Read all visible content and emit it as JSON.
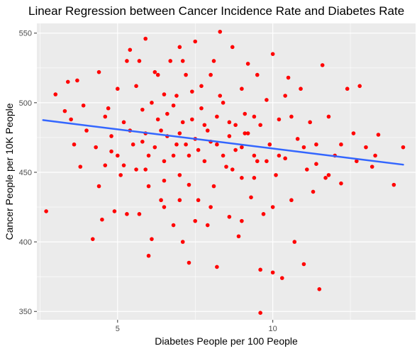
{
  "chart_data": {
    "type": "scatter",
    "title": "Linear Regression between Cancer Incidence Rate and Diabetes Rate",
    "xlabel": "Diabetes People per 100 People",
    "ylabel": "Cancer People per 10K People",
    "xlim": [
      2.4,
      14.6
    ],
    "ylim": [
      344,
      557
    ],
    "x_ticks": [
      5,
      10
    ],
    "y_ticks": [
      350,
      400,
      450,
      500,
      550
    ],
    "grid": true,
    "legend": "none",
    "point_color": "#ff0000",
    "line_color": "#3366ff",
    "panel_color": "#ebebeb",
    "regression": {
      "x": [
        2.6,
        14.2
      ],
      "y": [
        487.5,
        455.5
      ]
    },
    "points": [
      {
        "x": 2.7,
        "y": 422
      },
      {
        "x": 3.0,
        "y": 506
      },
      {
        "x": 3.4,
        "y": 515
      },
      {
        "x": 3.3,
        "y": 494
      },
      {
        "x": 3.5,
        "y": 488
      },
      {
        "x": 3.6,
        "y": 470
      },
      {
        "x": 3.7,
        "y": 516
      },
      {
        "x": 3.8,
        "y": 454
      },
      {
        "x": 3.9,
        "y": 498
      },
      {
        "x": 4.0,
        "y": 480
      },
      {
        "x": 4.2,
        "y": 402
      },
      {
        "x": 4.3,
        "y": 468
      },
      {
        "x": 4.4,
        "y": 522
      },
      {
        "x": 4.4,
        "y": 440
      },
      {
        "x": 4.5,
        "y": 416
      },
      {
        "x": 4.6,
        "y": 455
      },
      {
        "x": 4.7,
        "y": 496
      },
      {
        "x": 4.8,
        "y": 476
      },
      {
        "x": 4.9,
        "y": 422
      },
      {
        "x": 5.0,
        "y": 510
      },
      {
        "x": 5.0,
        "y": 462
      },
      {
        "x": 5.1,
        "y": 448
      },
      {
        "x": 5.2,
        "y": 486
      },
      {
        "x": 5.3,
        "y": 420
      },
      {
        "x": 5.3,
        "y": 530
      },
      {
        "x": 5.4,
        "y": 538
      },
      {
        "x": 5.5,
        "y": 470
      },
      {
        "x": 5.6,
        "y": 512
      },
      {
        "x": 5.6,
        "y": 452
      },
      {
        "x": 5.7,
        "y": 420
      },
      {
        "x": 5.8,
        "y": 495
      },
      {
        "x": 5.9,
        "y": 546
      },
      {
        "x": 5.9,
        "y": 478
      },
      {
        "x": 6.0,
        "y": 390
      },
      {
        "x": 6.0,
        "y": 440
      },
      {
        "x": 6.1,
        "y": 402
      },
      {
        "x": 6.2,
        "y": 522
      },
      {
        "x": 6.2,
        "y": 468
      },
      {
        "x": 6.3,
        "y": 488
      },
      {
        "x": 6.4,
        "y": 430
      },
      {
        "x": 6.5,
        "y": 506
      },
      {
        "x": 6.5,
        "y": 458
      },
      {
        "x": 6.6,
        "y": 476
      },
      {
        "x": 6.7,
        "y": 530
      },
      {
        "x": 6.8,
        "y": 412
      },
      {
        "x": 6.8,
        "y": 498
      },
      {
        "x": 6.9,
        "y": 470
      },
      {
        "x": 7.0,
        "y": 540
      },
      {
        "x": 7.0,
        "y": 448
      },
      {
        "x": 7.1,
        "y": 400
      },
      {
        "x": 7.1,
        "y": 486
      },
      {
        "x": 7.2,
        "y": 520
      },
      {
        "x": 7.3,
        "y": 462
      },
      {
        "x": 7.3,
        "y": 385
      },
      {
        "x": 7.4,
        "y": 508
      },
      {
        "x": 7.5,
        "y": 544
      },
      {
        "x": 7.5,
        "y": 474
      },
      {
        "x": 7.6,
        "y": 430
      },
      {
        "x": 7.7,
        "y": 496
      },
      {
        "x": 7.8,
        "y": 458
      },
      {
        "x": 7.9,
        "y": 412
      },
      {
        "x": 7.9,
        "y": 480
      },
      {
        "x": 8.0,
        "y": 520
      },
      {
        "x": 8.1,
        "y": 440
      },
      {
        "x": 8.2,
        "y": 382
      },
      {
        "x": 8.2,
        "y": 470
      },
      {
        "x": 8.3,
        "y": 551
      },
      {
        "x": 8.4,
        "y": 500
      },
      {
        "x": 8.5,
        "y": 454
      },
      {
        "x": 8.6,
        "y": 418
      },
      {
        "x": 8.6,
        "y": 486
      },
      {
        "x": 8.7,
        "y": 540
      },
      {
        "x": 8.8,
        "y": 466
      },
      {
        "x": 8.9,
        "y": 404
      },
      {
        "x": 9.0,
        "y": 510
      },
      {
        "x": 9.0,
        "y": 446
      },
      {
        "x": 9.1,
        "y": 478
      },
      {
        "x": 9.2,
        "y": 528
      },
      {
        "x": 9.3,
        "y": 432
      },
      {
        "x": 9.4,
        "y": 490
      },
      {
        "x": 9.5,
        "y": 458
      },
      {
        "x": 9.6,
        "y": 349
      },
      {
        "x": 9.6,
        "y": 380
      },
      {
        "x": 9.7,
        "y": 420
      },
      {
        "x": 9.8,
        "y": 502
      },
      {
        "x": 9.9,
        "y": 470
      },
      {
        "x": 10.0,
        "y": 535
      },
      {
        "x": 10.0,
        "y": 378
      },
      {
        "x": 10.1,
        "y": 448
      },
      {
        "x": 10.2,
        "y": 488
      },
      {
        "x": 10.3,
        "y": 374
      },
      {
        "x": 10.4,
        "y": 460
      },
      {
        "x": 10.5,
        "y": 518
      },
      {
        "x": 10.6,
        "y": 430
      },
      {
        "x": 10.7,
        "y": 400
      },
      {
        "x": 10.8,
        "y": 474
      },
      {
        "x": 10.9,
        "y": 510
      },
      {
        "x": 11.0,
        "y": 384
      },
      {
        "x": 11.1,
        "y": 452
      },
      {
        "x": 11.2,
        "y": 486
      },
      {
        "x": 11.3,
        "y": 436
      },
      {
        "x": 11.4,
        "y": 470
      },
      {
        "x": 11.5,
        "y": 366
      },
      {
        "x": 11.6,
        "y": 527
      },
      {
        "x": 11.7,
        "y": 446
      },
      {
        "x": 11.8,
        "y": 490
      },
      {
        "x": 12.0,
        "y": 462
      },
      {
        "x": 12.2,
        "y": 442
      },
      {
        "x": 12.4,
        "y": 510
      },
      {
        "x": 12.6,
        "y": 478
      },
      {
        "x": 12.8,
        "y": 512
      },
      {
        "x": 13.0,
        "y": 468
      },
      {
        "x": 13.2,
        "y": 454
      },
      {
        "x": 13.4,
        "y": 477
      },
      {
        "x": 13.9,
        "y": 441
      },
      {
        "x": 14.2,
        "y": 468
      },
      {
        "x": 6.4,
        "y": 480
      },
      {
        "x": 6.6,
        "y": 492
      },
      {
        "x": 6.8,
        "y": 462
      },
      {
        "x": 7.0,
        "y": 478
      },
      {
        "x": 7.2,
        "y": 470
      },
      {
        "x": 7.4,
        "y": 488
      },
      {
        "x": 7.6,
        "y": 466
      },
      {
        "x": 7.8,
        "y": 484
      },
      {
        "x": 8.0,
        "y": 472
      },
      {
        "x": 8.2,
        "y": 490
      },
      {
        "x": 8.4,
        "y": 462
      },
      {
        "x": 8.6,
        "y": 476
      },
      {
        "x": 8.8,
        "y": 484
      },
      {
        "x": 9.0,
        "y": 468
      },
      {
        "x": 9.2,
        "y": 478
      },
      {
        "x": 9.4,
        "y": 462
      },
      {
        "x": 9.6,
        "y": 484
      },
      {
        "x": 9.8,
        "y": 458
      },
      {
        "x": 6.0,
        "y": 462
      },
      {
        "x": 5.8,
        "y": 472
      },
      {
        "x": 5.4,
        "y": 480
      },
      {
        "x": 6.1,
        "y": 500
      },
      {
        "x": 6.9,
        "y": 505
      },
      {
        "x": 7.7,
        "y": 512
      },
      {
        "x": 8.3,
        "y": 505
      },
      {
        "x": 9.1,
        "y": 492
      },
      {
        "x": 10.6,
        "y": 490
      },
      {
        "x": 11.0,
        "y": 468
      },
      {
        "x": 10.2,
        "y": 462
      },
      {
        "x": 9.4,
        "y": 446
      },
      {
        "x": 7.3,
        "y": 441
      },
      {
        "x": 6.5,
        "y": 444
      },
      {
        "x": 5.9,
        "y": 452
      },
      {
        "x": 8.7,
        "y": 452
      },
      {
        "x": 11.4,
        "y": 456
      },
      {
        "x": 12.2,
        "y": 470
      },
      {
        "x": 5.2,
        "y": 455
      },
      {
        "x": 4.8,
        "y": 465
      },
      {
        "x": 4.6,
        "y": 490
      },
      {
        "x": 12.7,
        "y": 458
      },
      {
        "x": 13.3,
        "y": 462
      },
      {
        "x": 11.8,
        "y": 448
      },
      {
        "x": 7.0,
        "y": 430
      },
      {
        "x": 8.0,
        "y": 425
      },
      {
        "x": 9.0,
        "y": 415
      },
      {
        "x": 10.0,
        "y": 425
      },
      {
        "x": 6.5,
        "y": 425
      },
      {
        "x": 7.5,
        "y": 415
      },
      {
        "x": 6.3,
        "y": 520
      },
      {
        "x": 7.1,
        "y": 530
      },
      {
        "x": 8.1,
        "y": 530
      },
      {
        "x": 9.5,
        "y": 520
      },
      {
        "x": 10.4,
        "y": 505
      },
      {
        "x": 5.7,
        "y": 530
      }
    ]
  }
}
